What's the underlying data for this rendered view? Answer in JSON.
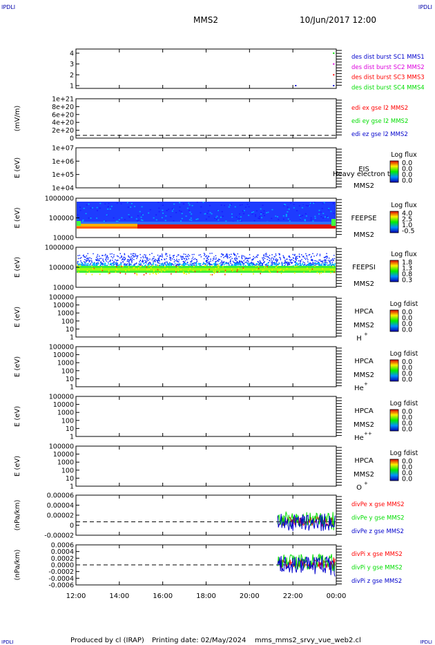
{
  "header": {
    "corner_tl": "IPDLI",
    "corner_tr": "IPDLI",
    "corner_bl": "IPDLI",
    "corner_br": "IPDLI",
    "title": "MMS2",
    "datetime": "10/Jun/2017 12:00"
  },
  "footer": {
    "producer": "Produced by cl (IRAP)",
    "print_date": "Printing date: 02/May/2024",
    "script": "mms_mms2_srvy_vue_web2.cl"
  },
  "colors": {
    "red": "#ff0000",
    "green": "#00dd00",
    "blue": "#0000cc",
    "magenta": "#dd00dd",
    "spectro_bg": "#1e3cff",
    "spectro_band": "#00aaff"
  },
  "chart_data": [
    {
      "id": "burst",
      "type": "scatter",
      "yticks": [
        "1",
        "2",
        "3",
        "4"
      ],
      "legend": [
        {
          "label": "des dist burst SC1 MMS1",
          "color": "#0000cc"
        },
        {
          "label": "des dist burst SC2 MMS2",
          "color": "#dd00dd"
        },
        {
          "label": "des dist burst SC3 MMS3",
          "color": "#ff0000"
        },
        {
          "label": "des dist burst SC4 MMS4",
          "color": "#00dd00"
        }
      ],
      "points": [
        {
          "x": 23.85,
          "y": 4,
          "color": "#00dd00"
        },
        {
          "x": 23.85,
          "y": 3,
          "color": "#dd00dd"
        },
        {
          "x": 23.85,
          "y": 2,
          "color": "#ff0000"
        },
        {
          "x": 22.1,
          "y": 1,
          "color": "#0000cc"
        },
        {
          "x": 23.85,
          "y": 1,
          "color": "#0000cc"
        }
      ]
    },
    {
      "id": "edi",
      "type": "line",
      "ylabel": "(mV/m)",
      "yticks": [
        "0",
        "2e+20",
        "4e+20",
        "6e+20",
        "8e+20",
        "1e+21"
      ],
      "legend": [
        {
          "label": "edi ex gse l2 MMS2",
          "color": "#ff0000"
        },
        {
          "label": "edi ey gse l2 MMS2",
          "color": "#00dd00"
        },
        {
          "label": "edi ez gse l2 MMS2",
          "color": "#0000cc"
        }
      ]
    },
    {
      "id": "eis",
      "type": "heatmap",
      "ylabel": "E (eV)",
      "yticks": [
        "1e+04",
        "1e+05",
        "1e+06",
        "1e+07"
      ],
      "instrument": "EIS",
      "spacecraft": "MMS2",
      "overlay_text": "Heavy electron to",
      "colorbar_title": "Log flux",
      "colorbar_ticks": [
        "0.0",
        "0.0",
        "0.0",
        "0.0"
      ]
    },
    {
      "id": "feepse",
      "type": "heatmap",
      "ylabel": "E (eV)",
      "yticks": [
        "10000",
        "100000",
        "1000000"
      ],
      "instrument": "FEEPSE",
      "spacecraft": "MMS2",
      "colorbar_title": "Log flux",
      "colorbar_ticks": [
        "4.0",
        "2.5",
        "1.0",
        "-0.5"
      ]
    },
    {
      "id": "feepsi",
      "type": "heatmap",
      "ylabel": "E (eV)",
      "yticks": [
        "10000",
        "100000",
        "1000000"
      ],
      "instrument": "FEEPSI",
      "spacecraft": "MMS2",
      "colorbar_title": "Log flux",
      "colorbar_ticks": [
        "1.8",
        "1.3",
        "0.8",
        "0.3"
      ]
    },
    {
      "id": "hpca_h",
      "type": "heatmap",
      "ylabel": "E (eV)",
      "yticks": [
        "1",
        "10",
        "100",
        "1000",
        "10000",
        "100000"
      ],
      "instrument": "HPCA",
      "spacecraft": "MMS2",
      "species": "H",
      "charge": "+",
      "colorbar_title": "Log fdist",
      "colorbar_ticks": [
        "0.0",
        "0.0",
        "0.0",
        "0.0"
      ]
    },
    {
      "id": "hpca_he",
      "type": "heatmap",
      "ylabel": "E (eV)",
      "yticks": [
        "1",
        "10",
        "100",
        "1000",
        "10000",
        "100000"
      ],
      "instrument": "HPCA",
      "spacecraft": "MMS2",
      "species": "He",
      "charge": "+",
      "colorbar_title": "Log fdist",
      "colorbar_ticks": [
        "0.0",
        "0.0",
        "0.0",
        "0.0"
      ]
    },
    {
      "id": "hpca_hepp",
      "type": "heatmap",
      "ylabel": "E (eV)",
      "yticks": [
        "1",
        "10",
        "100",
        "1000",
        "10000",
        "100000"
      ],
      "instrument": "HPCA",
      "spacecraft": "MMS2",
      "species": "He",
      "charge": "++",
      "colorbar_title": "Log fdist",
      "colorbar_ticks": [
        "0.0",
        "0.0",
        "0.0",
        "0.0"
      ]
    },
    {
      "id": "hpca_o",
      "type": "heatmap",
      "ylabel": "E (eV)",
      "yticks": [
        "1",
        "10",
        "100",
        "1000",
        "10000",
        "100000"
      ],
      "instrument": "HPCA",
      "spacecraft": "MMS2",
      "species": "O",
      "charge": "+",
      "colorbar_title": "Log fdist",
      "colorbar_ticks": [
        "0.0",
        "0.0",
        "0.0",
        "0.0"
      ]
    },
    {
      "id": "divpe",
      "type": "line",
      "ylabel": "(nPa/km)",
      "yticks": [
        "-0.00002",
        "0",
        "0.00002",
        "0.00004",
        "0.00006"
      ],
      "ylim": [
        -3e-05,
        6e-05
      ],
      "data_start_hour": 21.3,
      "legend": [
        {
          "label": "divPe x gse MMS2",
          "color": "#ff0000"
        },
        {
          "label": "divPe y gse MMS2",
          "color": "#00dd00"
        },
        {
          "label": "divPe z gse MMS2",
          "color": "#0000cc"
        }
      ]
    },
    {
      "id": "divpi",
      "type": "line",
      "ylabel": "(nPa/km)",
      "yticks": [
        "-0.0006",
        "-0.0004",
        "-0.0002",
        "0.0000",
        "0.0002",
        "0.0004",
        "0.0006"
      ],
      "ylim": [
        -0.00065,
        0.00065
      ],
      "data_start_hour": 21.3,
      "legend": [
        {
          "label": "divPi x gse MMS2",
          "color": "#ff0000"
        },
        {
          "label": "divPi y gse MMS2",
          "color": "#00dd00"
        },
        {
          "label": "divPi z gse MMS2",
          "color": "#0000cc"
        }
      ]
    }
  ],
  "xaxis": {
    "range_hours": [
      12,
      24
    ],
    "ticks": [
      "12:00",
      "14:00",
      "16:00",
      "18:00",
      "20:00",
      "22:00",
      "00:00"
    ]
  }
}
